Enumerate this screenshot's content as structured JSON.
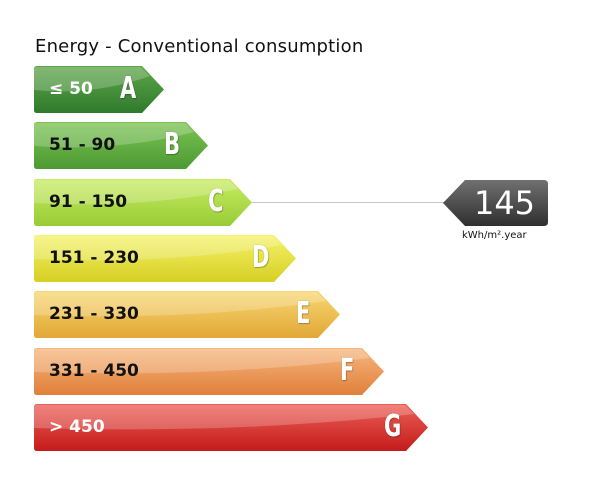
{
  "chart_data": {
    "type": "bar",
    "title": "Energy - Conventional consumption",
    "categories": [
      "A",
      "B",
      "C",
      "D",
      "E",
      "F",
      "G"
    ],
    "ranges": [
      "≤ 50",
      "51 - 90",
      "91 - 150",
      "151 - 230",
      "231 - 330",
      "331 - 450",
      "> 450"
    ],
    "colors": [
      {
        "top": "#5fa64a",
        "bottom": "#2f7a2c",
        "text": "#ffffff"
      },
      {
        "top": "#7cc352",
        "bottom": "#4d9a34",
        "text": "#111111"
      },
      {
        "top": "#c8ec62",
        "bottom": "#97cc36",
        "text": "#111111"
      },
      {
        "top": "#f4f36a",
        "bottom": "#d6cf23",
        "text": "#111111"
      },
      {
        "top": "#f7d772",
        "bottom": "#e2a736",
        "text": "#111111"
      },
      {
        "top": "#f6b77e",
        "bottom": "#e07f3a",
        "text": "#111111"
      },
      {
        "top": "#ec5f57",
        "bottom": "#c41b1a",
        "text": "#ffffff"
      }
    ],
    "value": 145,
    "value_class": "C",
    "unit": "kWh/m².year",
    "indicator_color": {
      "top": "#707070",
      "bottom": "#2f2f2f"
    }
  }
}
